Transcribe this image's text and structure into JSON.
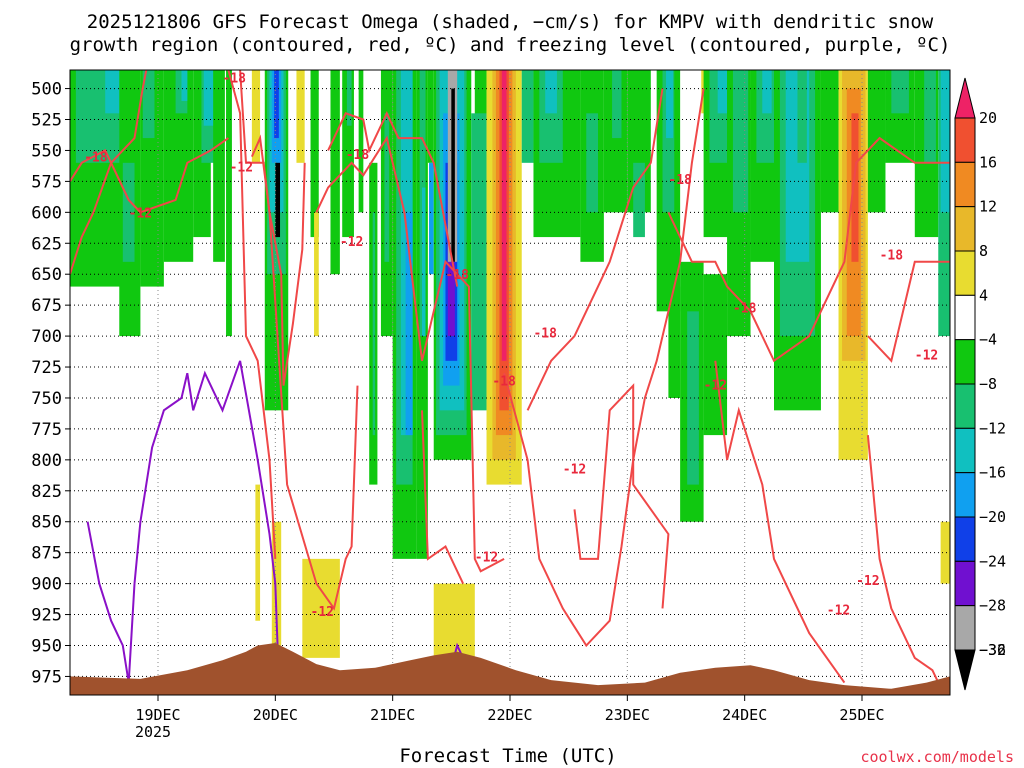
{
  "chart_data": {
    "type": "heatmap",
    "title_line1": "2025121806 GFS Forecast Omega (shaded, −cm/s) for KMPV with dendritic snow",
    "title_line2": "growth region (contoured, red, ºC) and freezing level (contoured, purple, ºC)",
    "xlabel": "Forecast Time (UTC)",
    "x_ticks": [
      {
        "t": 0.75,
        "label": "19DEC"
      },
      {
        "t": 1.75,
        "label": "20DEC"
      },
      {
        "t": 2.75,
        "label": "21DEC"
      },
      {
        "t": 3.75,
        "label": "22DEC"
      },
      {
        "t": 4.75,
        "label": "23DEC"
      },
      {
        "t": 5.75,
        "label": "24DEC"
      },
      {
        "t": 6.75,
        "label": "25DEC"
      }
    ],
    "x_year": "2025",
    "x_range": [
      0,
      7.5
    ],
    "y_ticks": [
      500,
      525,
      550,
      575,
      600,
      625,
      650,
      675,
      700,
      725,
      750,
      775,
      800,
      825,
      850,
      875,
      900,
      925,
      950,
      975
    ],
    "y_range": [
      485,
      990
    ],
    "colorbar": {
      "labels": [
        "20",
        "16",
        "12",
        "8",
        "4",
        "−4",
        "−8",
        "−12",
        "−16",
        "−20",
        "−24",
        "−28",
        "−32",
        "−36"
      ],
      "colors": [
        "#ee2266",
        "#f05030",
        "#f08a22",
        "#e8b82a",
        "#e8dc30",
        "#ffffff",
        "#10c810",
        "#18c070",
        "#10c0c0",
        "#10a0f0",
        "#1040e8",
        "#7010d0",
        "#a8a8a8",
        "#000000"
      ]
    },
    "contour_labels_red": [
      "-18",
      "-12"
    ],
    "credit": "coolwx.com/models"
  }
}
